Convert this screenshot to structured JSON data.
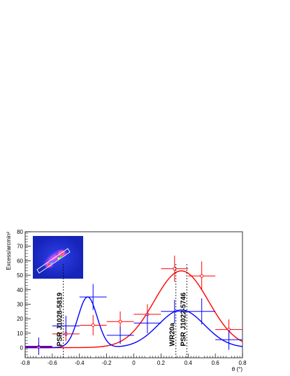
{
  "chart_data": {
    "type": "scatter",
    "xlabel": "θ (°)",
    "ylabel": "Excess/arcmin²",
    "xlim": [
      -0.8,
      0.8
    ],
    "ylim": [
      -7,
      80
    ],
    "x_ticks": [
      "-0.8",
      "-0.6",
      "-0.4",
      "-0.2",
      "0",
      "0.2",
      "0.4",
      "0.6",
      "0.8"
    ],
    "y_ticks": [
      "0",
      "10",
      "20",
      "30",
      "40",
      "50",
      "60",
      "70",
      "80"
    ],
    "grid": false,
    "legend": "none",
    "annotations": [
      {
        "text": "PSR J1028-5819",
        "x": -0.52
      },
      {
        "text": "WR20a",
        "x": 0.31
      },
      {
        "text": "PSR J1022-5746",
        "x": 0.39
      }
    ],
    "series": [
      {
        "color": "#ff0000",
        "marker": "open-circle",
        "points": [
          {
            "x": -0.7,
            "y": 0.5,
            "xerr": 0.1,
            "yerr": 3
          },
          {
            "x": -0.5,
            "y": 9.5,
            "xerr": 0.1,
            "yerr": 5
          },
          {
            "x": -0.3,
            "y": 15.5,
            "xerr": 0.1,
            "yerr": 7
          },
          {
            "x": -0.1,
            "y": 18,
            "xerr": 0.1,
            "yerr": 7
          },
          {
            "x": 0.1,
            "y": 23,
            "xerr": 0.1,
            "yerr": 7
          },
          {
            "x": 0.3,
            "y": 54.5,
            "xerr": 0.1,
            "yerr": 9
          },
          {
            "x": 0.5,
            "y": 49.5,
            "xerr": 0.1,
            "yerr": 10
          },
          {
            "x": 0.7,
            "y": 12.5,
            "xerr": 0.1,
            "yerr": 7
          }
        ],
        "fit": {
          "model": "gaussian",
          "amplitude": 53,
          "mean": 0.35,
          "sigma": 0.2,
          "baseline": 0
        }
      },
      {
        "color": "#0000ff",
        "marker": "cross",
        "points": [
          {
            "x": -0.7,
            "y": 1,
            "xerr": 0.1,
            "yerr": 6
          },
          {
            "x": -0.5,
            "y": 15,
            "xerr": 0.1,
            "yerr": 7
          },
          {
            "x": -0.3,
            "y": 35,
            "xerr": 0.1,
            "yerr": 9
          },
          {
            "x": -0.1,
            "y": 8.5,
            "xerr": 0.1,
            "yerr": 6
          },
          {
            "x": 0.1,
            "y": 17,
            "xerr": 0.1,
            "yerr": 7
          },
          {
            "x": 0.3,
            "y": 25,
            "xerr": 0.1,
            "yerr": 8
          },
          {
            "x": 0.5,
            "y": 25,
            "xerr": 0.1,
            "yerr": 9
          },
          {
            "x": 0.7,
            "y": 5.5,
            "xerr": 0.1,
            "yerr": 7
          }
        ],
        "fit": {
          "model": "double-gaussian",
          "baseline": 0,
          "components": [
            {
              "amplitude": 35,
              "mean": -0.34,
              "sigma": 0.07
            },
            {
              "amplitude": 26,
              "mean": 0.35,
              "sigma": 0.17
            }
          ]
        }
      }
    ],
    "inset": {
      "type": "sky-map",
      "colormap": "blue-to-red"
    }
  }
}
